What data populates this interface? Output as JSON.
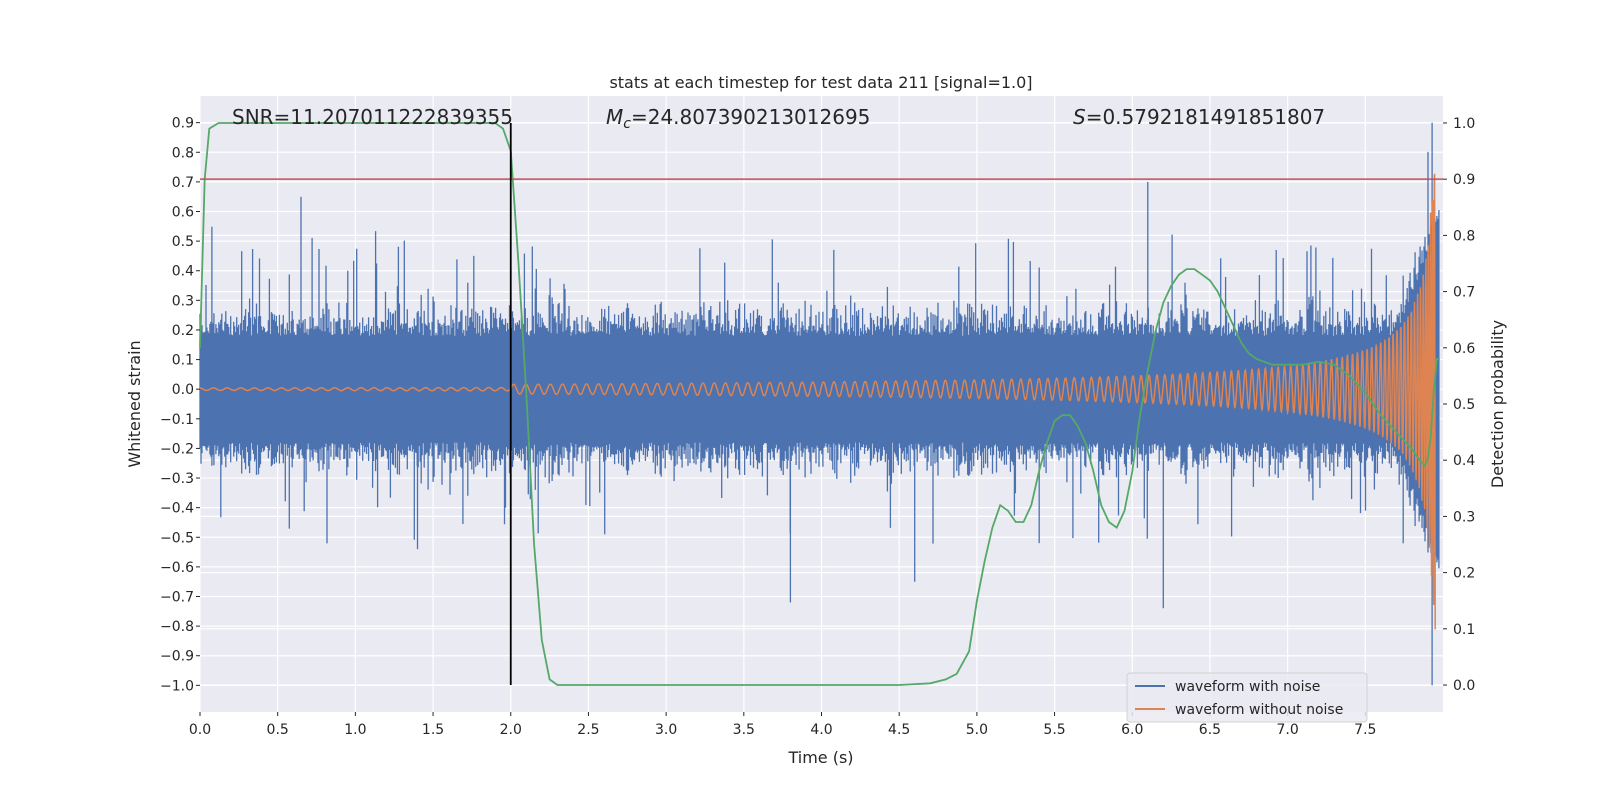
{
  "chart_data": {
    "type": "line",
    "title": "stats at each timestep for test data 211 [signal=1.0]",
    "xlabel": "Time (s)",
    "ylabel": "Whitened strain",
    "y2label": "Detection probability",
    "xlim": [
      0.0,
      8.0
    ],
    "ylim": [
      -1.09,
      0.99
    ],
    "y2lim": [
      -0.048,
      1.048
    ],
    "xticks": [
      "0.0",
      "0.5",
      "1.0",
      "1.5",
      "2.0",
      "2.5",
      "3.0",
      "3.5",
      "4.0",
      "4.5",
      "5.0",
      "5.5",
      "6.0",
      "6.5",
      "7.0",
      "7.5"
    ],
    "xtick_values": [
      0.0,
      0.5,
      1.0,
      1.5,
      2.0,
      2.5,
      3.0,
      3.5,
      4.0,
      4.5,
      5.0,
      5.5,
      6.0,
      6.5,
      7.0,
      7.5
    ],
    "yticks": [
      "0.9",
      "0.8",
      "0.7",
      "0.6",
      "0.5",
      "0.4",
      "0.3",
      "0.2",
      "0.1",
      "0.0",
      "−0.1",
      "−0.2",
      "−0.3",
      "−0.4",
      "−0.5",
      "−0.6",
      "−0.7",
      "−0.8",
      "−0.9",
      "−1.0"
    ],
    "ytick_values": [
      0.9,
      0.8,
      0.7,
      0.6,
      0.5,
      0.4,
      0.3,
      0.2,
      0.1,
      0.0,
      -0.1,
      -0.2,
      -0.3,
      -0.4,
      -0.5,
      -0.6,
      -0.7,
      -0.8,
      -0.9,
      -1.0
    ],
    "y2ticks": [
      "1.0",
      "0.9",
      "0.8",
      "0.7",
      "0.6",
      "0.5",
      "0.4",
      "0.3",
      "0.2",
      "0.1",
      "0.0"
    ],
    "y2tick_values": [
      1.0,
      0.9,
      0.8,
      0.7,
      0.6,
      0.5,
      0.4,
      0.3,
      0.2,
      0.1,
      0.0
    ],
    "grid": true,
    "legend_position": "lower-right",
    "annotations": {
      "snr": "SNR=11.207011222839355",
      "mc_prefix": "M",
      "mc_sub": "c",
      "mc_value": "=24.807390213012695",
      "s_prefix": "S",
      "s_value": "=0.5792181491851807"
    },
    "threshold_probability": 0.9,
    "vertical_marker_time": 2.0,
    "series": [
      {
        "name": "waveform with noise",
        "color": "#4c72b0",
        "description_values": "noise spanning roughly -0.45 to 0.45 with spikes up to 0.9 near 7.9 s"
      },
      {
        "name": "waveform without noise",
        "color": "#dd8452",
        "chirp_start_time": 2.0,
        "chirp_end_time": 7.95,
        "peak_amplitude": 0.85
      },
      {
        "name": "detection probability",
        "color": "#55a868",
        "axis": "right",
        "x": [
          0.0,
          0.03,
          0.06,
          0.12,
          0.2,
          0.5,
          1.0,
          1.5,
          1.9,
          1.95,
          2.0,
          2.05,
          2.1,
          2.15,
          2.2,
          2.25,
          2.3,
          2.5,
          3.0,
          3.5,
          4.0,
          4.5,
          4.7,
          4.8,
          4.87,
          4.95,
          5.0,
          5.05,
          5.1,
          5.15,
          5.2,
          5.25,
          5.3,
          5.35,
          5.4,
          5.45,
          5.5,
          5.55,
          5.6,
          5.65,
          5.7,
          5.75,
          5.8,
          5.85,
          5.9,
          5.95,
          6.0,
          6.05,
          6.1,
          6.15,
          6.2,
          6.25,
          6.3,
          6.35,
          6.4,
          6.45,
          6.5,
          6.55,
          6.6,
          6.65,
          6.7,
          6.75,
          6.8,
          6.85,
          6.9,
          7.0,
          7.1,
          7.2,
          7.3,
          7.4,
          7.5,
          7.6,
          7.7,
          7.8,
          7.85,
          7.88,
          7.9,
          7.92,
          7.94,
          7.96,
          7.98
        ],
        "y": [
          0.6,
          0.9,
          0.99,
          1.0,
          1.0,
          1.0,
          1.0,
          1.0,
          1.0,
          0.99,
          0.95,
          0.75,
          0.52,
          0.25,
          0.08,
          0.01,
          0.0,
          0.0,
          0.0,
          0.0,
          0.0,
          0.0,
          0.003,
          0.01,
          0.02,
          0.06,
          0.15,
          0.22,
          0.28,
          0.32,
          0.31,
          0.29,
          0.29,
          0.32,
          0.38,
          0.43,
          0.47,
          0.48,
          0.48,
          0.46,
          0.43,
          0.38,
          0.32,
          0.29,
          0.28,
          0.31,
          0.38,
          0.48,
          0.56,
          0.63,
          0.68,
          0.71,
          0.73,
          0.74,
          0.74,
          0.73,
          0.72,
          0.7,
          0.67,
          0.64,
          0.61,
          0.59,
          0.58,
          0.575,
          0.57,
          0.57,
          0.57,
          0.575,
          0.57,
          0.55,
          0.52,
          0.48,
          0.45,
          0.42,
          0.4,
          0.39,
          0.4,
          0.44,
          0.52,
          0.58,
          0.58
        ]
      }
    ]
  }
}
